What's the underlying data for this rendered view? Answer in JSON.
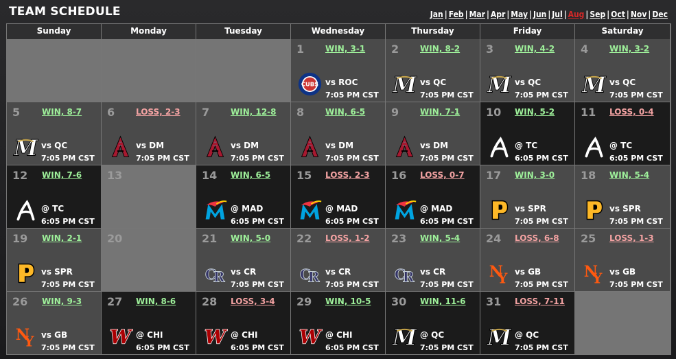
{
  "title": "TEAM SCHEDULE",
  "months": [
    "Jan",
    "Feb",
    "Mar",
    "Apr",
    "May",
    "Jun",
    "Jul",
    "Aug",
    "Sep",
    "Oct",
    "Nov",
    "Dec"
  ],
  "active_month": "Aug",
  "colors": {
    "win": "#9ef09a",
    "loss": "#f4a3a3",
    "active_month": "#d42828"
  },
  "weekdays": [
    "Sunday",
    "Monday",
    "Tuesday",
    "Wednesday",
    "Thursday",
    "Friday",
    "Saturday"
  ],
  "weeks": [
    [
      {
        "type": "empty"
      },
      {
        "type": "empty"
      },
      {
        "type": "empty"
      },
      {
        "day": "1",
        "theme": "gray",
        "result": "WIN, 3-1",
        "outcome": "win",
        "opponent": "vs ROC",
        "time": "7:05 PM CST",
        "logo": "cubs-logo-icon"
      },
      {
        "day": "2",
        "theme": "gray",
        "result": "WIN, 8-2",
        "outcome": "win",
        "opponent": "vs QC",
        "time": "7:05 PM CST",
        "logo": "brewers-m-logo-icon"
      },
      {
        "day": "3",
        "theme": "gray",
        "result": "WIN, 4-2",
        "outcome": "win",
        "opponent": "vs QC",
        "time": "7:05 PM CST",
        "logo": "brewers-m-logo-icon"
      },
      {
        "day": "4",
        "theme": "gray",
        "result": "WIN, 3-2",
        "outcome": "win",
        "opponent": "vs QC",
        "time": "7:05 PM CST",
        "logo": "brewers-m-logo-icon"
      }
    ],
    [
      {
        "day": "5",
        "theme": "gray",
        "result": "WIN, 8-7",
        "outcome": "win",
        "opponent": "vs QC",
        "time": "7:05 PM CST",
        "logo": "brewers-m-logo-icon"
      },
      {
        "day": "6",
        "theme": "gray",
        "result": "LOSS, 2-3",
        "outcome": "loss",
        "opponent": "vs DM",
        "time": "7:05 PM CST",
        "logo": "diamondbacks-a-logo-icon"
      },
      {
        "day": "7",
        "theme": "gray",
        "result": "WIN, 12-8",
        "outcome": "win",
        "opponent": "vs DM",
        "time": "7:05 PM CST",
        "logo": "diamondbacks-a-logo-icon"
      },
      {
        "day": "8",
        "theme": "gray",
        "result": "WIN, 6-5",
        "outcome": "win",
        "opponent": "vs DM",
        "time": "7:05 PM CST",
        "logo": "diamondbacks-a-logo-icon"
      },
      {
        "day": "9",
        "theme": "gray",
        "result": "WIN, 7-1",
        "outcome": "win",
        "opponent": "vs DM",
        "time": "7:05 PM CST",
        "logo": "diamondbacks-a-logo-icon"
      },
      {
        "day": "10",
        "theme": "dark",
        "result": "WIN, 5-2",
        "outcome": "win",
        "opponent": "@ TC",
        "time": "6:05 PM CST",
        "logo": "braves-a-logo-icon"
      },
      {
        "day": "11",
        "theme": "dark",
        "result": "LOSS, 0-4",
        "outcome": "loss",
        "opponent": "@ TC",
        "time": "6:05 PM CST",
        "logo": "braves-a-logo-icon"
      }
    ],
    [
      {
        "day": "12",
        "theme": "dark",
        "result": "WIN, 7-6",
        "outcome": "win",
        "opponent": "@ TC",
        "time": "6:05 PM CST",
        "logo": "braves-a-logo-icon"
      },
      {
        "day": "13",
        "type": "empty"
      },
      {
        "day": "14",
        "theme": "dark",
        "result": "WIN, 6-5",
        "outcome": "win",
        "opponent": "@ MAD",
        "time": "6:05 PM CST",
        "logo": "marlins-m-logo-icon"
      },
      {
        "day": "15",
        "theme": "dark",
        "result": "LOSS, 2-3",
        "outcome": "loss",
        "opponent": "@ MAD",
        "time": "6:05 PM CST",
        "logo": "marlins-m-logo-icon"
      },
      {
        "day": "16",
        "theme": "dark",
        "result": "LOSS, 0-7",
        "outcome": "loss",
        "opponent": "@ MAD",
        "time": "6:05 PM CST",
        "logo": "marlins-m-logo-icon"
      },
      {
        "day": "17",
        "theme": "gray",
        "result": "WIN, 3-0",
        "outcome": "win",
        "opponent": "vs SPR",
        "time": "7:05 PM CST",
        "logo": "pirates-p-logo-icon"
      },
      {
        "day": "18",
        "theme": "gray",
        "result": "WIN, 5-4",
        "outcome": "win",
        "opponent": "vs SPR",
        "time": "7:05 PM CST",
        "logo": "pirates-p-logo-icon"
      }
    ],
    [
      {
        "day": "19",
        "theme": "gray",
        "result": "WIN, 2-1",
        "outcome": "win",
        "opponent": "vs SPR",
        "time": "7:05 PM CST",
        "logo": "pirates-p-logo-icon"
      },
      {
        "day": "20",
        "type": "empty"
      },
      {
        "day": "21",
        "theme": "gray",
        "result": "WIN, 5-0",
        "outcome": "win",
        "opponent": "vs CR",
        "time": "7:05 PM CST",
        "logo": "rockies-cr-logo-icon"
      },
      {
        "day": "22",
        "theme": "gray",
        "result": "LOSS, 1-2",
        "outcome": "loss",
        "opponent": "vs CR",
        "time": "7:05 PM CST",
        "logo": "rockies-cr-logo-icon"
      },
      {
        "day": "23",
        "theme": "gray",
        "result": "WIN, 5-4",
        "outcome": "win",
        "opponent": "vs CR",
        "time": "7:05 PM CST",
        "logo": "rockies-cr-logo-icon"
      },
      {
        "day": "24",
        "theme": "gray",
        "result": "LOSS, 6-8",
        "outcome": "loss",
        "opponent": "vs GB",
        "time": "7:05 PM CST",
        "logo": "mets-ny-logo-icon"
      },
      {
        "day": "25",
        "theme": "gray",
        "result": "LOSS, 1-3",
        "outcome": "loss",
        "opponent": "vs GB",
        "time": "7:05 PM CST",
        "logo": "mets-ny-logo-icon"
      }
    ],
    [
      {
        "day": "26",
        "theme": "gray",
        "result": "WIN, 9-3",
        "outcome": "win",
        "opponent": "vs GB",
        "time": "7:05 PM CST",
        "logo": "mets-ny-logo-icon"
      },
      {
        "day": "27",
        "theme": "dark",
        "result": "WIN, 8-6",
        "outcome": "win",
        "opponent": "@ CHI",
        "time": "6:05 PM CST",
        "logo": "nationals-w-logo-icon"
      },
      {
        "day": "28",
        "theme": "dark",
        "result": "LOSS, 3-4",
        "outcome": "loss",
        "opponent": "@ CHI",
        "time": "6:05 PM CST",
        "logo": "nationals-w-logo-icon"
      },
      {
        "day": "29",
        "theme": "dark",
        "result": "WIN, 10-5",
        "outcome": "win",
        "opponent": "@ CHI",
        "time": "6:05 PM CST",
        "logo": "nationals-w-logo-icon"
      },
      {
        "day": "30",
        "theme": "dark",
        "result": "WIN, 11-6",
        "outcome": "win",
        "opponent": "@ QC",
        "time": "7:05 PM CST",
        "logo": "brewers-m-logo-icon"
      },
      {
        "day": "31",
        "theme": "dark",
        "result": "LOSS, 7-11",
        "outcome": "loss",
        "opponent": "@ QC",
        "time": "7:05 PM CST",
        "logo": "brewers-m-logo-icon"
      },
      {
        "type": "empty"
      }
    ]
  ]
}
